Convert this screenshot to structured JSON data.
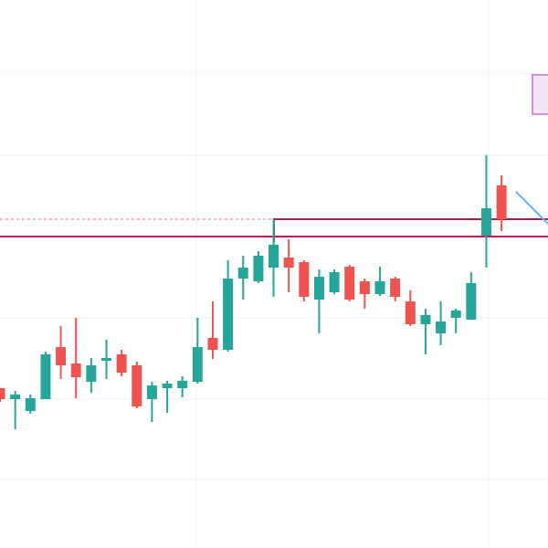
{
  "chart_data": {
    "type": "candlestick",
    "open": [
      175,
      163,
      150,
      163,
      220,
      202,
      182,
      205,
      212,
      200,
      163,
      175,
      175,
      182,
      230,
      217,
      295,
      292,
      307,
      318,
      313,
      272,
      280,
      308,
      292,
      278,
      295,
      270,
      245,
      235,
      252,
      250,
      342,
      397
    ],
    "high": [
      175,
      172,
      168,
      215,
      243,
      252,
      208,
      228,
      217,
      204,
      182,
      183,
      188,
      252,
      270,
      315,
      320,
      325,
      360,
      338,
      315,
      305,
      305,
      310,
      295,
      308,
      297,
      282,
      262,
      270,
      262,
      302,
      430,
      408
    ],
    "low": [
      160,
      130,
      147,
      163,
      185,
      164,
      170,
      185,
      188,
      153,
      138,
      148,
      165,
      180,
      207,
      215,
      272,
      290,
      275,
      280,
      270,
      235,
      278,
      270,
      262,
      276,
      270,
      243,
      212,
      222,
      235,
      250,
      307,
      347
    ],
    "close": [
      163,
      168,
      164,
      212,
      200,
      187,
      200,
      208,
      192,
      155,
      178,
      180,
      183,
      220,
      217,
      295,
      307,
      320,
      332,
      307,
      275,
      297,
      302,
      272,
      278,
      292,
      275,
      245,
      255,
      248,
      260,
      290,
      372,
      360
    ],
    "up_color": "#26a69a",
    "down_color": "#ef5350",
    "ylim": [
      0,
      600
    ],
    "yticks": [
      75,
      163,
      252,
      342,
      430,
      520
    ],
    "grid": true,
    "hlines": [
      {
        "value": 341,
        "color": "#c2185b",
        "style": "solid"
      },
      {
        "value": 360,
        "color": "#e57373",
        "style": "dotted"
      }
    ]
  }
}
